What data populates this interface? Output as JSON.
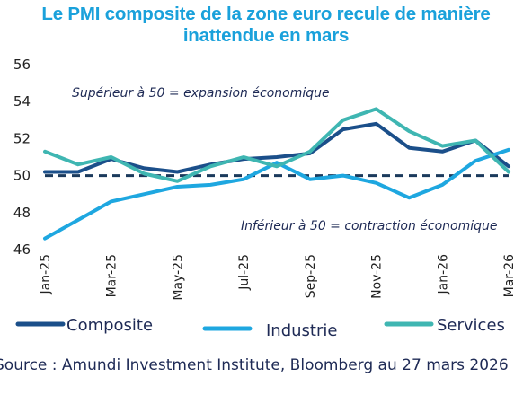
{
  "title_line1": "Le PMI composite de la zone euro recule de manière",
  "title_line2": "inattendue en mars",
  "source": "Source : Amundi Investment Institute, Bloomberg au 27 mars 2026",
  "annotations": {
    "above": "Supérieur à 50 = expansion économique",
    "below": "Inférieur à 50 = contraction économique"
  },
  "colors": {
    "title": "#1aa1db",
    "composite": "#1b4f8a",
    "industrie": "#1ea7e0",
    "services": "#3fb6b2",
    "threshold": "#1b3a5c"
  },
  "chart_data": {
    "type": "line",
    "title": "Le PMI composite de la zone euro recule de manière inattendue en mars",
    "xlabel": "",
    "ylabel": "",
    "x": [
      "Jan-25",
      "Feb-25",
      "Mar-25",
      "Apr-25",
      "May-25",
      "Jun-25",
      "Jul-25",
      "Aug-25",
      "Sep-25",
      "Oct-25",
      "Nov-25",
      "Dec-25",
      "Jan-26",
      "Feb-26",
      "Mar-26"
    ],
    "x_tick_labels": [
      "Jan-25",
      "Mar-25",
      "May-25",
      "Jul-25",
      "Sep-25",
      "Nov-25",
      "Jan-26",
      "Mar-26"
    ],
    "ylim": [
      46,
      56
    ],
    "y_ticks": [
      46,
      48,
      50,
      52,
      54,
      56
    ],
    "threshold": 50,
    "grid": false,
    "legend_position": "bottom",
    "series": [
      {
        "name": "Composite",
        "color": "#1b4f8a",
        "values": [
          50.2,
          50.2,
          50.9,
          50.4,
          50.2,
          50.6,
          50.9,
          51.0,
          51.2,
          52.5,
          52.8,
          51.5,
          51.3,
          51.9,
          50.5
        ]
      },
      {
        "name": "Industrie",
        "color": "#1ea7e0",
        "values": [
          46.6,
          47.6,
          48.6,
          49.0,
          49.4,
          49.5,
          49.8,
          50.7,
          49.8,
          50.0,
          49.6,
          48.8,
          49.5,
          50.8,
          51.4
        ]
      },
      {
        "name": "Services",
        "color": "#3fb6b2",
        "values": [
          51.3,
          50.6,
          51.0,
          50.1,
          49.7,
          50.5,
          51.0,
          50.5,
          51.3,
          53.0,
          53.6,
          52.4,
          51.6,
          51.9,
          50.2
        ]
      }
    ]
  }
}
